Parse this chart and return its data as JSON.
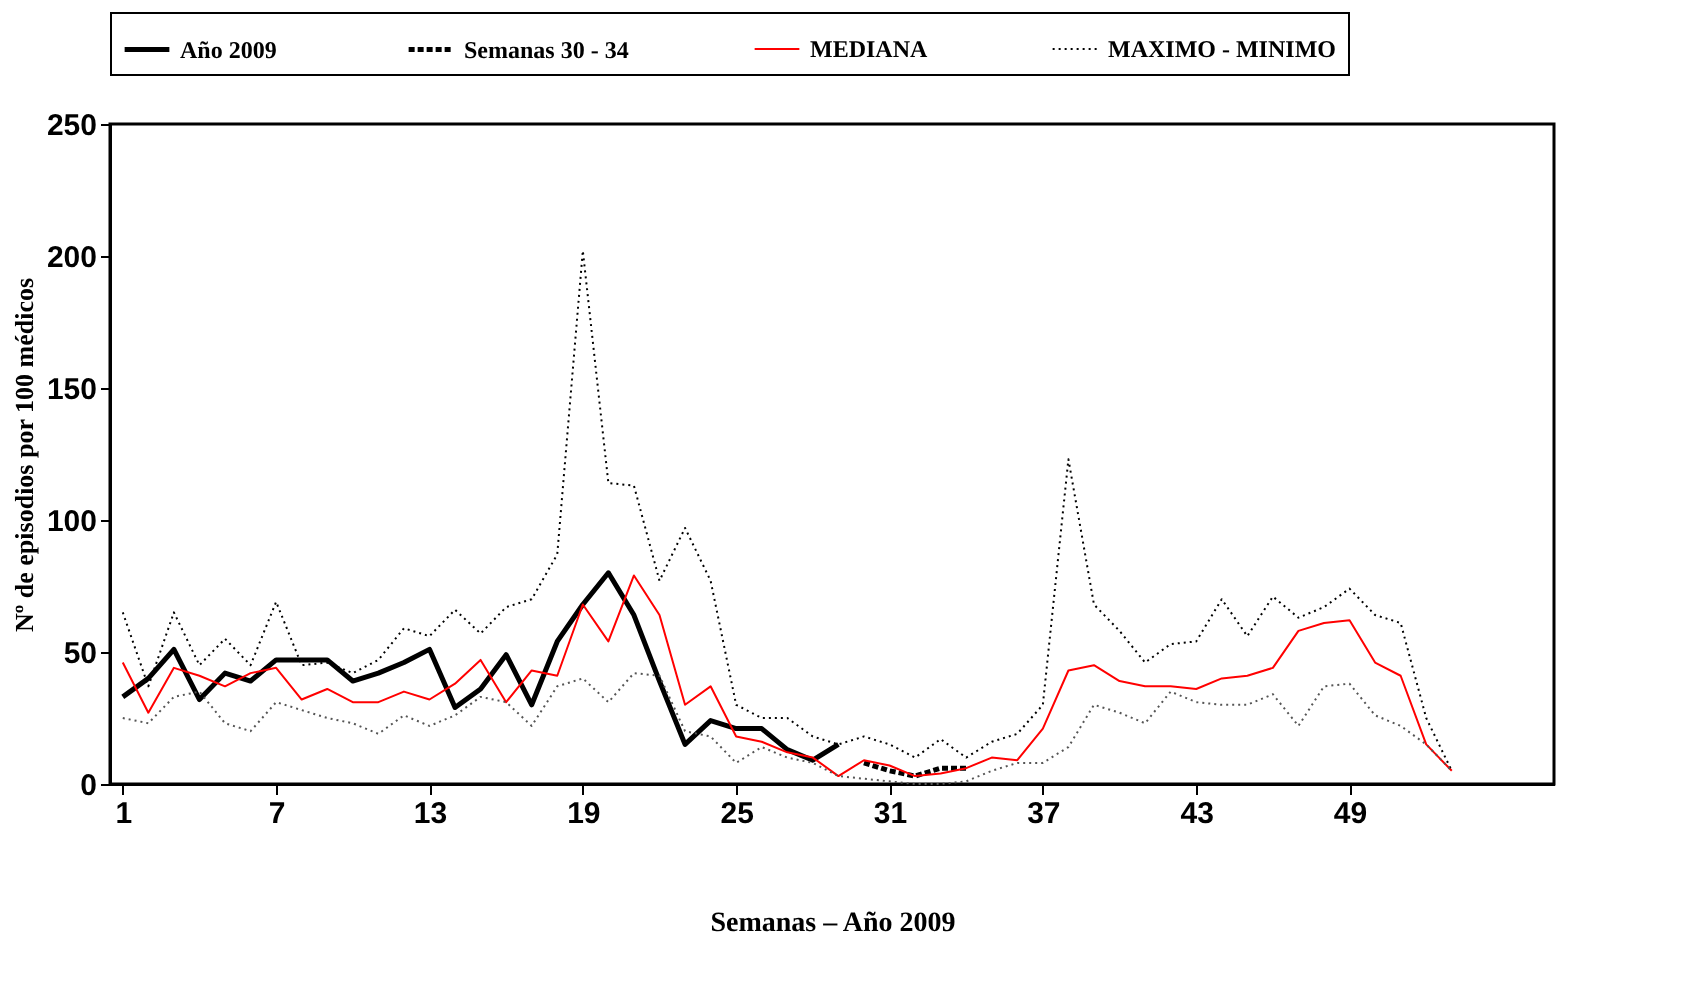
{
  "chart_data": {
    "type": "line",
    "xlabel": "Semanas – Año 2009",
    "ylabel": "Nº de episodios por 100 médicos",
    "xlim": [
      0.5,
      57
    ],
    "xticks": [
      1,
      7,
      13,
      19,
      25,
      31,
      37,
      43,
      49
    ],
    "ylim": [
      0,
      250
    ],
    "yticks": [
      0,
      50,
      100,
      150,
      200,
      250
    ],
    "grid": false,
    "legend": "top",
    "marker": "none",
    "series": [
      {
        "name": "Año 2009",
        "color": "#000000",
        "line_style": "solid",
        "x": [
          1,
          2,
          3,
          4,
          5,
          6,
          7,
          8,
          9,
          10,
          11,
          12,
          13,
          14,
          15,
          16,
          17,
          18,
          19,
          20,
          21,
          22,
          23,
          24,
          25,
          26,
          27,
          28,
          29
        ],
        "values": [
          33,
          40,
          51,
          32,
          42,
          39,
          47,
          47,
          47,
          39,
          42,
          46,
          51,
          29,
          36,
          49,
          30,
          54,
          68,
          80,
          64,
          39,
          15,
          24,
          21,
          21,
          13,
          9,
          15
        ]
      },
      {
        "name": "Semanas 30 - 34",
        "color": "#000000",
        "line_style": "dashed",
        "x": [
          30,
          31,
          32,
          33,
          34
        ],
        "values": [
          8,
          5,
          3,
          6,
          6
        ]
      },
      {
        "name": "MEDIANA",
        "color": "#ff0000",
        "line_style": "solid",
        "x": [
          1,
          2,
          3,
          4,
          5,
          6,
          7,
          8,
          9,
          10,
          11,
          12,
          13,
          14,
          15,
          16,
          17,
          18,
          19,
          20,
          21,
          22,
          23,
          24,
          25,
          26,
          27,
          28,
          29,
          30,
          31,
          32,
          33,
          34,
          35,
          36,
          37,
          38,
          39,
          40,
          41,
          42,
          43,
          44,
          45,
          46,
          47,
          48,
          49,
          50,
          51,
          52,
          53
        ],
        "values": [
          46,
          27,
          44,
          41,
          37,
          42,
          44,
          32,
          36,
          31,
          31,
          35,
          32,
          38,
          47,
          31,
          43,
          41,
          68,
          54,
          79,
          64,
          30,
          37,
          18,
          16,
          12,
          10,
          3,
          9,
          7,
          3,
          4,
          6,
          10,
          9,
          21,
          43,
          45,
          39,
          37,
          37,
          36,
          40,
          41,
          44,
          58,
          61,
          62,
          46,
          41,
          15,
          5
        ]
      },
      {
        "name": "MAXIMO - MINIMO",
        "color": "#000000",
        "line_style": "dotted",
        "x": [
          1,
          2,
          3,
          4,
          5,
          6,
          7,
          8,
          9,
          10,
          11,
          12,
          13,
          14,
          15,
          16,
          17,
          18,
          19,
          20,
          21,
          22,
          23,
          24,
          25,
          26,
          27,
          28,
          29,
          30,
          31,
          32,
          33,
          34,
          35,
          36,
          37,
          38,
          39,
          40,
          41,
          42,
          43,
          44,
          45,
          46,
          47,
          48,
          49,
          50,
          51,
          52,
          53
        ],
        "values": [
          65,
          37,
          65,
          45,
          55,
          45,
          69,
          45,
          46,
          42,
          47,
          59,
          56,
          66,
          57,
          67,
          70,
          87,
          202,
          114,
          113,
          77,
          97,
          77,
          30,
          25,
          25,
          18,
          15,
          18,
          15,
          10,
          17,
          10,
          16,
          19,
          30,
          123,
          68,
          58,
          46,
          53,
          54,
          70,
          56,
          71,
          63,
          67,
          74,
          64,
          61,
          25,
          5
        ]
      },
      {
        "color": "#555555",
        "line_style": "dotted",
        "x": [
          1,
          2,
          3,
          4,
          5,
          6,
          7,
          8,
          9,
          10,
          11,
          12,
          13,
          14,
          15,
          16,
          17,
          18,
          19,
          20,
          21,
          22,
          23,
          24,
          25,
          26,
          27,
          28,
          29,
          30,
          31,
          32,
          33,
          34,
          35,
          36,
          37,
          38,
          39,
          40,
          41,
          42,
          43,
          44,
          45,
          46,
          47,
          48,
          49,
          50,
          51,
          52,
          53
        ],
        "values": [
          25,
          23,
          33,
          35,
          23,
          20,
          31,
          28,
          25,
          23,
          19,
          26,
          22,
          26,
          33,
          31,
          22,
          37,
          40,
          31,
          42,
          41,
          20,
          18,
          8,
          14,
          10,
          8,
          3,
          2,
          1,
          0,
          0,
          1,
          5,
          8,
          8,
          14,
          30,
          27,
          23,
          35,
          31,
          30,
          30,
          34,
          22,
          37,
          38,
          26,
          22,
          15,
          5
        ]
      }
    ]
  }
}
